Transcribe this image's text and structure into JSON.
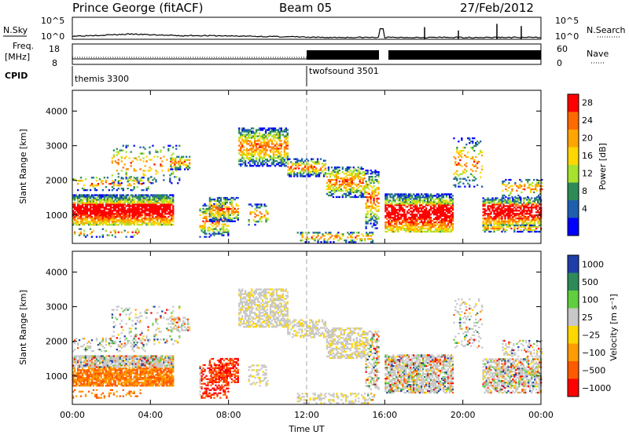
{
  "header": {
    "station": "Prince George (fitACF)",
    "beam": "Beam 05",
    "date": "27/Feb/2012"
  },
  "top_panels": {
    "nsky_label": "N.Sky",
    "nsearch_label": "N.Search",
    "nsky_ticks": [
      "10^5",
      "10^0"
    ],
    "nsearch_ticks": [
      "10^5",
      "10^0"
    ],
    "freq_label_1": "Freq.",
    "freq_label_2": "[MHz]",
    "freq_ticks": [
      "18",
      "8"
    ],
    "nave_label": "Nave",
    "nave_ticks": [
      "60",
      "0"
    ],
    "cpid_label": "CPID",
    "cpid_segments": [
      {
        "name": "themis 3300",
        "start_hour": 0,
        "end_hour": 12
      },
      {
        "name": "twofsound 3501",
        "start_hour": 12,
        "end_hour": 24
      }
    ]
  },
  "chart_data": [
    {
      "type": "heatmap",
      "title": "",
      "xlabel": "Time UT",
      "ylabel": "Slant Range [km]",
      "x_ticks": [
        "00:00",
        "04:00",
        "08:00",
        "12:00",
        "16:00",
        "20:00",
        "00:00"
      ],
      "x_tick_hours": [
        0,
        4,
        8,
        12,
        16,
        20,
        24
      ],
      "y_ticks": [
        1000,
        2000,
        3000,
        4000
      ],
      "ylim": [
        180,
        4600
      ],
      "xlim": [
        0,
        24
      ],
      "colorbar": {
        "label": "Power [dB]",
        "ticks": [
          "28",
          "24",
          "20",
          "16",
          "12",
          "8",
          "4"
        ],
        "colors": [
          "#ff0000",
          "#ff6a00",
          "#ffa500",
          "#ffd700",
          "#a6e22e",
          "#2e8b57",
          "#1e5fae",
          "#0000ff"
        ]
      }
    },
    {
      "type": "heatmap",
      "title": "",
      "xlabel": "Time UT",
      "ylabel": "Slant Range [km]",
      "x_ticks": [
        "00:00",
        "04:00",
        "08:00",
        "12:00",
        "16:00",
        "20:00",
        "00:00"
      ],
      "x_tick_hours": [
        0,
        4,
        8,
        12,
        16,
        20,
        24
      ],
      "y_ticks": [
        1000,
        2000,
        3000,
        4000
      ],
      "ylim": [
        180,
        4600
      ],
      "xlim": [
        0,
        24
      ],
      "colorbar": {
        "label": "Velocity [m s⁻¹]",
        "ticks": [
          "1000",
          "500",
          "100",
          "25",
          "−25",
          "−100",
          "−500",
          "−1000"
        ],
        "colors": [
          "#1f3fa8",
          "#2e8b57",
          "#5fcf3f",
          "#c8c8c8",
          "#ffd700",
          "#ff9c00",
          "#ff5a00",
          "#ff0000"
        ]
      }
    }
  ]
}
